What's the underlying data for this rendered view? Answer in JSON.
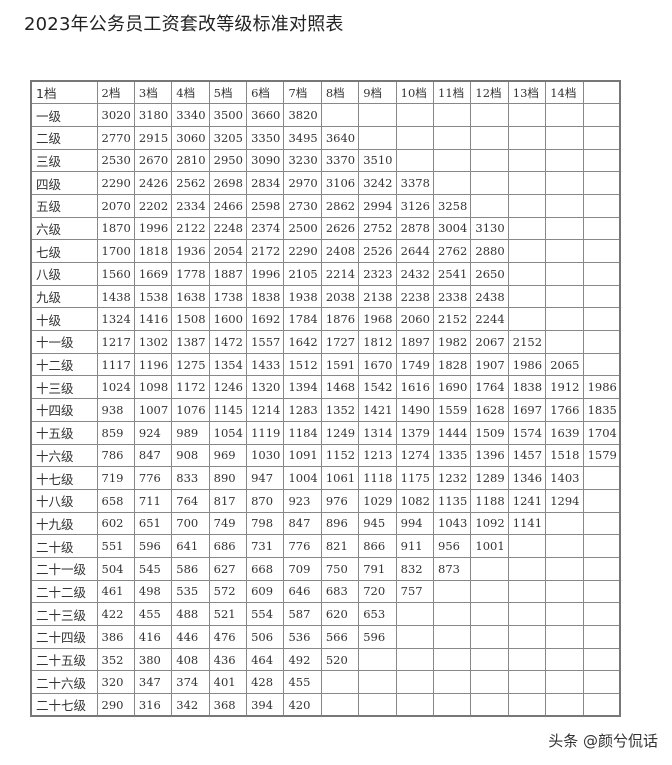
{
  "title": "2023年公务员工资套改等级标准对照表",
  "table": {
    "headers": [
      "1档",
      "2档",
      "3档",
      "4档",
      "5档",
      "6档",
      "7档",
      "8档",
      "9档",
      "10档",
      "11档",
      "12档",
      "13档",
      "14档",
      ""
    ],
    "rows": [
      {
        "grade": "一级",
        "values": [
          "3020",
          "3180",
          "3340",
          "3500",
          "3660",
          "3820"
        ]
      },
      {
        "grade": "二级",
        "values": [
          "2770",
          "2915",
          "3060",
          "3205",
          "3350",
          "3495",
          "3640"
        ]
      },
      {
        "grade": "三级",
        "values": [
          "2530",
          "2670",
          "2810",
          "2950",
          "3090",
          "3230",
          "3370",
          "3510"
        ]
      },
      {
        "grade": "四级",
        "values": [
          "2290",
          "2426",
          "2562",
          "2698",
          "2834",
          "2970",
          "3106",
          "3242",
          "3378"
        ]
      },
      {
        "grade": "五级",
        "values": [
          "2070",
          "2202",
          "2334",
          "2466",
          "2598",
          "2730",
          "2862",
          "2994",
          "3126",
          "3258"
        ]
      },
      {
        "grade": "六级",
        "values": [
          "1870",
          "1996",
          "2122",
          "2248",
          "2374",
          "2500",
          "2626",
          "2752",
          "2878",
          "3004",
          "3130"
        ]
      },
      {
        "grade": "七级",
        "values": [
          "1700",
          "1818",
          "1936",
          "2054",
          "2172",
          "2290",
          "2408",
          "2526",
          "2644",
          "2762",
          "2880"
        ]
      },
      {
        "grade": "八级",
        "values": [
          "1560",
          "1669",
          "1778",
          "1887",
          "1996",
          "2105",
          "2214",
          "2323",
          "2432",
          "2541",
          "2650"
        ]
      },
      {
        "grade": "九级",
        "values": [
          "1438",
          "1538",
          "1638",
          "1738",
          "1838",
          "1938",
          "2038",
          "2138",
          "2238",
          "2338",
          "2438"
        ]
      },
      {
        "grade": "十级",
        "values": [
          "1324",
          "1416",
          "1508",
          "1600",
          "1692",
          "1784",
          "1876",
          "1968",
          "2060",
          "2152",
          "2244"
        ]
      },
      {
        "grade": "十一级",
        "values": [
          "1217",
          "1302",
          "1387",
          "1472",
          "1557",
          "1642",
          "1727",
          "1812",
          "1897",
          "1982",
          "2067",
          "2152"
        ]
      },
      {
        "grade": "十二级",
        "values": [
          "1117",
          "1196",
          "1275",
          "1354",
          "1433",
          "1512",
          "1591",
          "1670",
          "1749",
          "1828",
          "1907",
          "1986",
          "2065"
        ]
      },
      {
        "grade": "十三级",
        "values": [
          "1024",
          "1098",
          "1172",
          "1246",
          "1320",
          "1394",
          "1468",
          "1542",
          "1616",
          "1690",
          "1764",
          "1838",
          "1912",
          "1986"
        ]
      },
      {
        "grade": "十四级",
        "values": [
          "938",
          "1007",
          "1076",
          "1145",
          "1214",
          "1283",
          "1352",
          "1421",
          "1490",
          "1559",
          "1628",
          "1697",
          "1766",
          "1835"
        ]
      },
      {
        "grade": "十五级",
        "values": [
          "859",
          "924",
          "989",
          "1054",
          "1119",
          "1184",
          "1249",
          "1314",
          "1379",
          "1444",
          "1509",
          "1574",
          "1639",
          "1704"
        ]
      },
      {
        "grade": "十六级",
        "values": [
          "786",
          "847",
          "908",
          "969",
          "1030",
          "1091",
          "1152",
          "1213",
          "1274",
          "1335",
          "1396",
          "1457",
          "1518",
          "1579"
        ]
      },
      {
        "grade": "十七级",
        "values": [
          "719",
          "776",
          "833",
          "890",
          "947",
          "1004",
          "1061",
          "1118",
          "1175",
          "1232",
          "1289",
          "1346",
          "1403"
        ]
      },
      {
        "grade": "十八级",
        "values": [
          "658",
          "711",
          "764",
          "817",
          "870",
          "923",
          "976",
          "1029",
          "1082",
          "1135",
          "1188",
          "1241",
          "1294"
        ]
      },
      {
        "grade": "十九级",
        "values": [
          "602",
          "651",
          "700",
          "749",
          "798",
          "847",
          "896",
          "945",
          "994",
          "1043",
          "1092",
          "1141"
        ]
      },
      {
        "grade": "二十级",
        "values": [
          "551",
          "596",
          "641",
          "686",
          "731",
          "776",
          "821",
          "866",
          "911",
          "956",
          "1001"
        ]
      },
      {
        "grade": "二十一级",
        "values": [
          "504",
          "545",
          "586",
          "627",
          "668",
          "709",
          "750",
          "791",
          "832",
          "873"
        ]
      },
      {
        "grade": "二十二级",
        "values": [
          "461",
          "498",
          "535",
          "572",
          "609",
          "646",
          "683",
          "720",
          "757"
        ]
      },
      {
        "grade": "二十三级",
        "values": [
          "422",
          "455",
          "488",
          "521",
          "554",
          "587",
          "620",
          "653"
        ]
      },
      {
        "grade": "二十四级",
        "values": [
          "386",
          "416",
          "446",
          "476",
          "506",
          "536",
          "566",
          "596"
        ]
      },
      {
        "grade": "二十五级",
        "values": [
          "352",
          "380",
          "408",
          "436",
          "464",
          "492",
          "520"
        ]
      },
      {
        "grade": "二十六级",
        "values": [
          "320",
          "347",
          "374",
          "401",
          "428",
          "455"
        ]
      },
      {
        "grade": "二十七级",
        "values": [
          "290",
          "316",
          "342",
          "368",
          "394",
          "420"
        ]
      }
    ]
  },
  "watermark": "头条 @颜兮侃话"
}
